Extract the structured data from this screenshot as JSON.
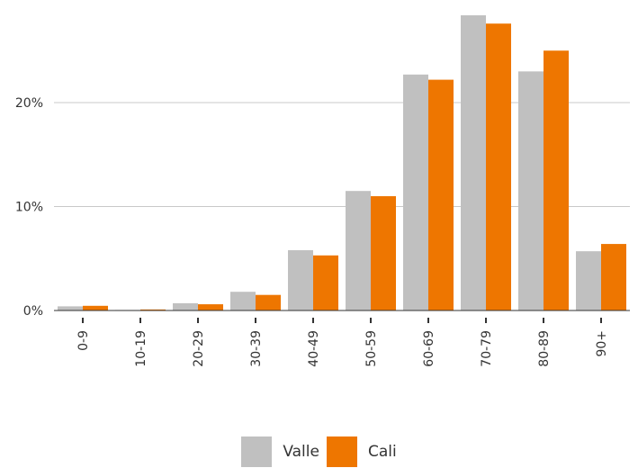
{
  "chart_data": {
    "type": "bar",
    "categories": [
      "0-9",
      "10-19",
      "20-29",
      "30-39",
      "40-49",
      "50-59",
      "60-69",
      "70-79",
      "80-89",
      "90+"
    ],
    "series": [
      {
        "name": "Valle",
        "color": "#c0c0c0",
        "values": [
          0.4,
          0.05,
          0.7,
          1.8,
          5.8,
          11.5,
          22.7,
          28.4,
          23.0,
          5.7
        ]
      },
      {
        "name": "Cali",
        "color": "#ee7600",
        "values": [
          0.45,
          0.1,
          0.6,
          1.5,
          5.3,
          11.0,
          22.2,
          27.6,
          25.0,
          6.4
        ]
      }
    ],
    "yticks": [
      "0%",
      "10%",
      "20%"
    ],
    "ylim": [
      0,
      28.4
    ],
    "grid": true,
    "legend_position": "bottom-center",
    "xlabel": "",
    "ylabel": "",
    "title": ""
  }
}
